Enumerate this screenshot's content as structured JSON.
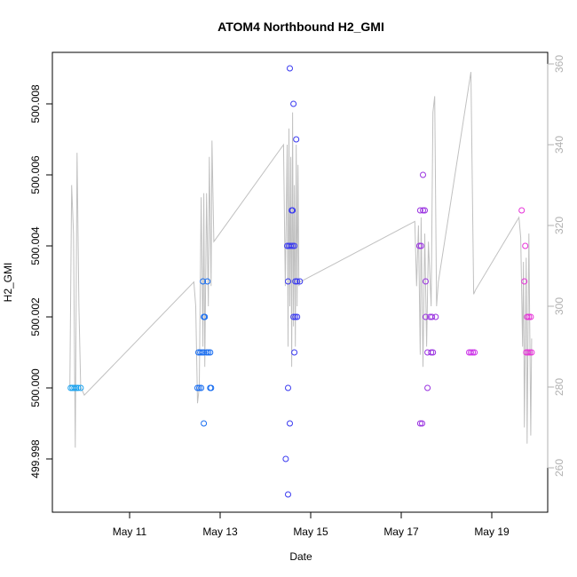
{
  "chart_data": {
    "type": "scatter",
    "title": "ATOM4 Northbound H2_GMI",
    "xlabel": "Date",
    "ylabel": "H2_GMI",
    "x_ticks": [
      {
        "day": 11,
        "label": "May 11"
      },
      {
        "day": 13,
        "label": "May 13"
      },
      {
        "day": 15,
        "label": "May 15"
      },
      {
        "day": 17,
        "label": "May 17"
      },
      {
        "day": 19,
        "label": "May 19"
      }
    ],
    "x_range": [
      "May 9",
      "May 20"
    ],
    "y_left": {
      "range": [
        499.997,
        500.009
      ],
      "ticks": [
        {
          "value": 499.998,
          "label": "499.998"
        },
        {
          "value": 500.0,
          "label": "500.000"
        },
        {
          "value": 500.002,
          "label": "500.002"
        },
        {
          "value": 500.004,
          "label": "500.004"
        },
        {
          "value": 500.006,
          "label": "500.006"
        },
        {
          "value": 500.008,
          "label": "500.008"
        }
      ]
    },
    "y_right": {
      "range": [
        250,
        362
      ],
      "ticks": [
        {
          "value": 260,
          "label": "260"
        },
        {
          "value": 280,
          "label": "280"
        },
        {
          "value": 300,
          "label": "300"
        },
        {
          "value": 320,
          "label": "320"
        },
        {
          "value": 340,
          "label": "340"
        },
        {
          "value": 360,
          "label": "360"
        }
      ]
    },
    "points": [
      {
        "day": 9.7,
        "value": 500.0,
        "color": "#1aa3f0"
      },
      {
        "day": 9.74,
        "value": 500.0,
        "color": "#1aa3f0"
      },
      {
        "day": 9.78,
        "value": 500.0,
        "color": "#1aa3f0"
      },
      {
        "day": 9.82,
        "value": 500.0,
        "color": "#1aa3f0"
      },
      {
        "day": 9.86,
        "value": 500.0,
        "color": "#1aa3f0"
      },
      {
        "day": 9.92,
        "value": 500.0,
        "color": "#1aa3f0"
      },
      {
        "day": 12.5,
        "value": 500.0,
        "color": "#1a6ef0"
      },
      {
        "day": 12.54,
        "value": 500.0,
        "color": "#1a6ef0"
      },
      {
        "day": 12.58,
        "value": 500.0,
        "color": "#1a6ef0"
      },
      {
        "day": 12.52,
        "value": 500.001,
        "color": "#1a6ef0"
      },
      {
        "day": 12.56,
        "value": 500.001,
        "color": "#1a6ef0"
      },
      {
        "day": 12.6,
        "value": 500.001,
        "color": "#1a6ef0"
      },
      {
        "day": 12.64,
        "value": 500.001,
        "color": "#1a6ef0"
      },
      {
        "day": 12.7,
        "value": 500.001,
        "color": "#1a6ef0"
      },
      {
        "day": 12.74,
        "value": 500.001,
        "color": "#1a6ef0"
      },
      {
        "day": 12.78,
        "value": 500.001,
        "color": "#1a6ef0"
      },
      {
        "day": 12.64,
        "value": 500.002,
        "color": "#1a6ef0"
      },
      {
        "day": 12.66,
        "value": 500.002,
        "color": "#1a6ef0"
      },
      {
        "day": 12.62,
        "value": 500.003,
        "color": "#1a6ef0"
      },
      {
        "day": 12.72,
        "value": 500.003,
        "color": "#1a6ef0"
      },
      {
        "day": 12.64,
        "value": 499.999,
        "color": "#1a6ef0"
      },
      {
        "day": 12.78,
        "value": 500.0,
        "color": "#1a6ef0"
      },
      {
        "day": 12.8,
        "value": 500.0,
        "color": "#1a6ef0"
      },
      {
        "day": 14.45,
        "value": 499.998,
        "color": "#3a3af0"
      },
      {
        "day": 14.5,
        "value": 499.997,
        "color": "#3a3af0"
      },
      {
        "day": 14.5,
        "value": 500.0,
        "color": "#3a3af0"
      },
      {
        "day": 14.54,
        "value": 499.999,
        "color": "#3a3af0"
      },
      {
        "day": 14.48,
        "value": 500.004,
        "color": "#3a3af0"
      },
      {
        "day": 14.52,
        "value": 500.004,
        "color": "#3a3af0"
      },
      {
        "day": 14.56,
        "value": 500.004,
        "color": "#3a3af0"
      },
      {
        "day": 14.6,
        "value": 500.004,
        "color": "#3a3af0"
      },
      {
        "day": 14.64,
        "value": 500.004,
        "color": "#3a3af0"
      },
      {
        "day": 14.5,
        "value": 500.003,
        "color": "#3a3af0"
      },
      {
        "day": 14.66,
        "value": 500.003,
        "color": "#3a3af0"
      },
      {
        "day": 14.7,
        "value": 500.003,
        "color": "#3a3af0"
      },
      {
        "day": 14.76,
        "value": 500.003,
        "color": "#3a3af0"
      },
      {
        "day": 14.62,
        "value": 500.002,
        "color": "#3a3af0"
      },
      {
        "day": 14.66,
        "value": 500.002,
        "color": "#3a3af0"
      },
      {
        "day": 14.7,
        "value": 500.002,
        "color": "#3a3af0"
      },
      {
        "day": 14.58,
        "value": 500.005,
        "color": "#3a3af0"
      },
      {
        "day": 14.6,
        "value": 500.005,
        "color": "#3a3af0"
      },
      {
        "day": 14.68,
        "value": 500.007,
        "color": "#3a3af0"
      },
      {
        "day": 14.62,
        "value": 500.008,
        "color": "#3a3af0"
      },
      {
        "day": 14.54,
        "value": 500.009,
        "color": "#3a3af0"
      },
      {
        "day": 14.64,
        "value": 500.001,
        "color": "#3a3af0"
      },
      {
        "day": 17.42,
        "value": 499.999,
        "color": "#9a33e0"
      },
      {
        "day": 17.46,
        "value": 499.999,
        "color": "#9a33e0"
      },
      {
        "day": 17.4,
        "value": 500.004,
        "color": "#9a33e0"
      },
      {
        "day": 17.44,
        "value": 500.004,
        "color": "#9a33e0"
      },
      {
        "day": 17.42,
        "value": 500.005,
        "color": "#9a33e0"
      },
      {
        "day": 17.48,
        "value": 500.005,
        "color": "#9a33e0"
      },
      {
        "day": 17.52,
        "value": 500.005,
        "color": "#9a33e0"
      },
      {
        "day": 17.48,
        "value": 500.006,
        "color": "#9a33e0"
      },
      {
        "day": 17.54,
        "value": 500.003,
        "color": "#9a33e0"
      },
      {
        "day": 17.54,
        "value": 500.002,
        "color": "#9a33e0"
      },
      {
        "day": 17.64,
        "value": 500.002,
        "color": "#9a33e0"
      },
      {
        "day": 17.68,
        "value": 500.002,
        "color": "#9a33e0"
      },
      {
        "day": 17.76,
        "value": 500.002,
        "color": "#9a33e0"
      },
      {
        "day": 17.58,
        "value": 500.001,
        "color": "#9a33e0"
      },
      {
        "day": 17.66,
        "value": 500.001,
        "color": "#9a33e0"
      },
      {
        "day": 17.7,
        "value": 500.001,
        "color": "#9a33e0"
      },
      {
        "day": 17.58,
        "value": 500.0,
        "color": "#9a33e0"
      },
      {
        "day": 18.5,
        "value": 500.001,
        "color": "#cc33e8"
      },
      {
        "day": 18.54,
        "value": 500.001,
        "color": "#cc33e8"
      },
      {
        "day": 18.58,
        "value": 500.001,
        "color": "#cc33e8"
      },
      {
        "day": 18.62,
        "value": 500.001,
        "color": "#cc33e8"
      },
      {
        "day": 19.66,
        "value": 500.005,
        "color": "#e633d8"
      },
      {
        "day": 19.74,
        "value": 500.004,
        "color": "#e633d8"
      },
      {
        "day": 19.72,
        "value": 500.003,
        "color": "#e633d8"
      },
      {
        "day": 19.78,
        "value": 500.002,
        "color": "#e633d8"
      },
      {
        "day": 19.82,
        "value": 500.002,
        "color": "#e633d8"
      },
      {
        "day": 19.86,
        "value": 500.002,
        "color": "#e633d8"
      },
      {
        "day": 19.76,
        "value": 500.001,
        "color": "#e633d8"
      },
      {
        "day": 19.8,
        "value": 500.001,
        "color": "#e633d8"
      },
      {
        "day": 19.84,
        "value": 500.001,
        "color": "#e633d8"
      },
      {
        "day": 19.88,
        "value": 500.001,
        "color": "#e633d8"
      }
    ],
    "line_series": {
      "color": "#c0c0c0",
      "points": [
        {
          "day": 9.68,
          "value": 280
        },
        {
          "day": 9.72,
          "value": 330
        },
        {
          "day": 9.76,
          "value": 318
        },
        {
          "day": 9.8,
          "value": 265
        },
        {
          "day": 9.84,
          "value": 338
        },
        {
          "day": 9.88,
          "value": 300
        },
        {
          "day": 9.92,
          "value": 280
        },
        {
          "day": 10.0,
          "value": 278
        },
        {
          "day": 12.42,
          "value": 306
        },
        {
          "day": 12.46,
          "value": 300
        },
        {
          "day": 12.5,
          "value": 276
        },
        {
          "day": 12.54,
          "value": 280
        },
        {
          "day": 12.58,
          "value": 327
        },
        {
          "day": 12.62,
          "value": 290
        },
        {
          "day": 12.64,
          "value": 328
        },
        {
          "day": 12.66,
          "value": 285
        },
        {
          "day": 12.7,
          "value": 328
        },
        {
          "day": 12.74,
          "value": 300
        },
        {
          "day": 12.76,
          "value": 337
        },
        {
          "day": 12.8,
          "value": 305
        },
        {
          "day": 12.82,
          "value": 341
        },
        {
          "day": 12.86,
          "value": 316
        },
        {
          "day": 14.4,
          "value": 340
        },
        {
          "day": 14.44,
          "value": 305
        },
        {
          "day": 14.48,
          "value": 340
        },
        {
          "day": 14.5,
          "value": 290
        },
        {
          "day": 14.52,
          "value": 344
        },
        {
          "day": 14.54,
          "value": 300
        },
        {
          "day": 14.56,
          "value": 337
        },
        {
          "day": 14.58,
          "value": 285
        },
        {
          "day": 14.6,
          "value": 348
        },
        {
          "day": 14.62,
          "value": 295
        },
        {
          "day": 14.64,
          "value": 330
        },
        {
          "day": 14.66,
          "value": 290
        },
        {
          "day": 14.68,
          "value": 340
        },
        {
          "day": 14.7,
          "value": 300
        },
        {
          "day": 14.72,
          "value": 335
        },
        {
          "day": 14.74,
          "value": 305
        },
        {
          "day": 14.76,
          "value": 306
        },
        {
          "day": 17.3,
          "value": 321
        },
        {
          "day": 17.34,
          "value": 305
        },
        {
          "day": 17.38,
          "value": 320
        },
        {
          "day": 17.42,
          "value": 288
        },
        {
          "day": 17.44,
          "value": 322
        },
        {
          "day": 17.48,
          "value": 285
        },
        {
          "day": 17.52,
          "value": 318
        },
        {
          "day": 17.56,
          "value": 290
        },
        {
          "day": 17.6,
          "value": 316
        },
        {
          "day": 17.66,
          "value": 300
        },
        {
          "day": 17.7,
          "value": 348
        },
        {
          "day": 17.74,
          "value": 352
        },
        {
          "day": 17.78,
          "value": 300
        },
        {
          "day": 17.82,
          "value": 306
        },
        {
          "day": 18.54,
          "value": 358
        },
        {
          "day": 18.6,
          "value": 303
        },
        {
          "day": 18.64,
          "value": 304
        },
        {
          "day": 19.6,
          "value": 322
        },
        {
          "day": 19.64,
          "value": 317
        },
        {
          "day": 19.68,
          "value": 290
        },
        {
          "day": 19.7,
          "value": 311
        },
        {
          "day": 19.72,
          "value": 270
        },
        {
          "day": 19.76,
          "value": 312
        },
        {
          "day": 19.78,
          "value": 266
        },
        {
          "day": 19.82,
          "value": 318
        },
        {
          "day": 19.86,
          "value": 268
        },
        {
          "day": 19.88,
          "value": 292
        }
      ]
    }
  }
}
